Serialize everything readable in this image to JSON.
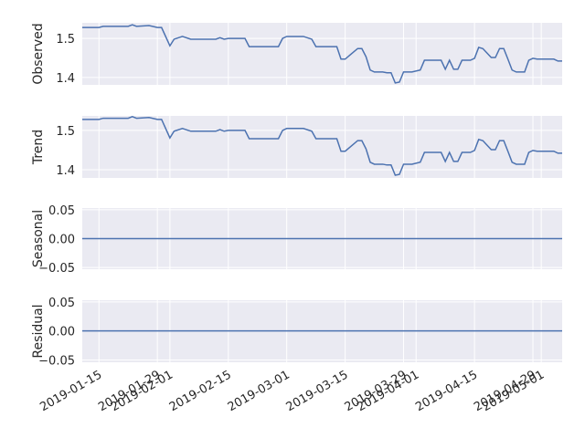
{
  "chart_data": {
    "type": "line",
    "color": "#4c72b0",
    "grid": true,
    "x": [
      "2019-01-11",
      "2019-01-15",
      "2019-01-16",
      "2019-01-22",
      "2019-01-23",
      "2019-01-24",
      "2019-01-27",
      "2019-01-29",
      "2019-01-30",
      "2019-02-01",
      "2019-02-02",
      "2019-02-04",
      "2019-02-06",
      "2019-02-12",
      "2019-02-13",
      "2019-02-14",
      "2019-02-15",
      "2019-02-19",
      "2019-02-20",
      "2019-02-27",
      "2019-02-28",
      "2019-03-01",
      "2019-03-05",
      "2019-03-07",
      "2019-03-08",
      "2019-03-13",
      "2019-03-14",
      "2019-03-15",
      "2019-03-18",
      "2019-03-19",
      "2019-03-20",
      "2019-03-21",
      "2019-03-22",
      "2019-03-24",
      "2019-03-25",
      "2019-03-26",
      "2019-03-27",
      "2019-03-28",
      "2019-03-29",
      "2019-03-31",
      "2019-04-02",
      "2019-04-03",
      "2019-04-07",
      "2019-04-08",
      "2019-04-09",
      "2019-04-10",
      "2019-04-11",
      "2019-04-12",
      "2019-04-14",
      "2019-04-15",
      "2019-04-16",
      "2019-04-17",
      "2019-04-19",
      "2019-04-20",
      "2019-04-21",
      "2019-04-22",
      "2019-04-23",
      "2019-04-24",
      "2019-04-25",
      "2019-04-27",
      "2019-04-28",
      "2019-04-29",
      "2019-04-30",
      "2019-05-04",
      "2019-05-05",
      "2019-05-06"
    ],
    "xlim": [
      "2019-01-11",
      "2019-05-06"
    ],
    "xticks": [
      "2019-01-15",
      "2019-01-29",
      "2019-02-01",
      "2019-02-15",
      "2019-03-01",
      "2019-03-15",
      "2019-03-29",
      "2019-04-01",
      "2019-04-15",
      "2019-04-29",
      "2019-05-01"
    ],
    "panels": [
      {
        "ylabel": "Observed",
        "ylim": [
          1.381,
          1.54
        ],
        "yticks": [
          1.4,
          1.5
        ],
        "values": [
          1.528,
          1.528,
          1.531,
          1.531,
          1.535,
          1.531,
          1.533,
          1.528,
          1.528,
          1.481,
          1.498,
          1.505,
          1.498,
          1.498,
          1.502,
          1.498,
          1.5,
          1.5,
          1.479,
          1.479,
          1.5,
          1.505,
          1.505,
          1.498,
          1.479,
          1.479,
          1.447,
          1.447,
          1.474,
          1.474,
          1.453,
          1.419,
          1.414,
          1.414,
          1.412,
          1.412,
          1.386,
          1.388,
          1.414,
          1.414,
          1.419,
          1.444,
          1.444,
          1.421,
          1.444,
          1.421,
          1.421,
          1.444,
          1.444,
          1.449,
          1.477,
          1.474,
          1.451,
          1.451,
          1.474,
          1.474,
          1.447,
          1.419,
          1.414,
          1.414,
          1.444,
          1.449,
          1.447,
          1.447,
          1.442,
          1.442
        ]
      },
      {
        "ylabel": "Trend",
        "ylim": [
          1.379,
          1.537
        ],
        "yticks": [
          1.4,
          1.5
        ],
        "values": [
          1.528,
          1.528,
          1.531,
          1.531,
          1.535,
          1.531,
          1.533,
          1.528,
          1.528,
          1.481,
          1.498,
          1.505,
          1.498,
          1.498,
          1.502,
          1.498,
          1.5,
          1.5,
          1.479,
          1.479,
          1.5,
          1.505,
          1.505,
          1.498,
          1.479,
          1.479,
          1.447,
          1.447,
          1.474,
          1.474,
          1.453,
          1.419,
          1.414,
          1.414,
          1.412,
          1.412,
          1.386,
          1.388,
          1.414,
          1.414,
          1.419,
          1.444,
          1.444,
          1.421,
          1.444,
          1.421,
          1.421,
          1.444,
          1.444,
          1.449,
          1.477,
          1.474,
          1.451,
          1.451,
          1.474,
          1.474,
          1.447,
          1.419,
          1.414,
          1.414,
          1.444,
          1.449,
          1.447,
          1.447,
          1.442,
          1.442
        ]
      },
      {
        "ylabel": "Seasonal",
        "ylim": [
          -0.053,
          0.053
        ],
        "yticks": [
          {
            "value": 0.05,
            "label": "0.05"
          },
          {
            "value": 0,
            "label": "0.00"
          },
          {
            "value": -0.05,
            "label": "−0.05"
          }
        ],
        "values": [
          0,
          0,
          0,
          0,
          0,
          0,
          0,
          0,
          0,
          0,
          0,
          0,
          0,
          0,
          0,
          0,
          0,
          0,
          0,
          0,
          0,
          0,
          0,
          0,
          0,
          0,
          0,
          0,
          0,
          0,
          0,
          0,
          0,
          0,
          0,
          0,
          0,
          0,
          0,
          0,
          0,
          0,
          0,
          0,
          0,
          0,
          0,
          0,
          0,
          0,
          0,
          0,
          0,
          0,
          0,
          0,
          0,
          0,
          0,
          0,
          0,
          0,
          0,
          0,
          0,
          0
        ]
      },
      {
        "ylabel": "Residual",
        "ylim": [
          -0.054,
          0.053
        ],
        "yticks": [
          {
            "value": 0.05,
            "label": "0.05"
          },
          {
            "value": 0,
            "label": "0.00"
          },
          {
            "value": -0.05,
            "label": "−0.05"
          }
        ],
        "values": [
          0,
          0,
          0,
          0,
          0,
          0,
          0,
          0,
          0,
          0,
          0,
          0,
          0,
          0,
          0,
          0,
          0,
          0,
          0,
          0,
          0,
          0,
          0,
          0,
          0,
          0,
          0,
          0,
          0,
          0,
          0,
          0,
          0,
          0,
          0,
          0,
          0,
          0,
          0,
          0,
          0,
          0,
          0,
          0,
          0,
          0,
          0,
          0,
          0,
          0,
          0,
          0,
          0,
          0,
          0,
          0,
          0,
          0,
          0,
          0,
          0,
          0,
          0,
          0,
          0,
          0
        ]
      }
    ]
  }
}
